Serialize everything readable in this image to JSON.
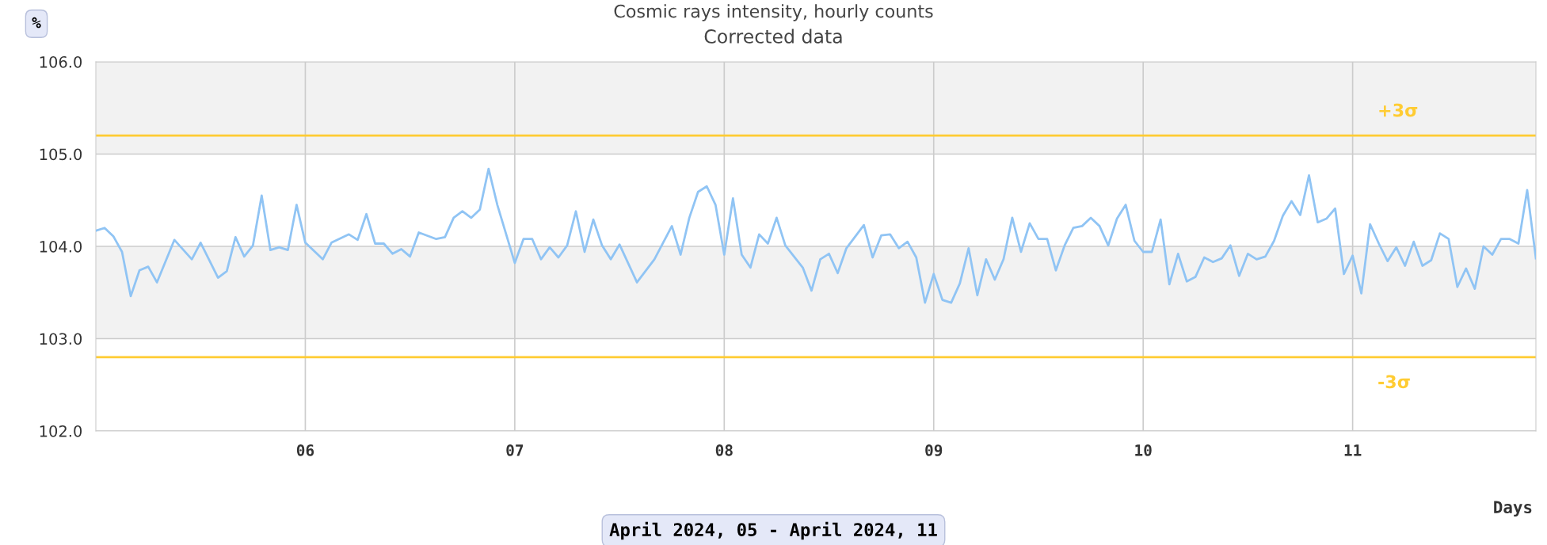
{
  "chart_data": {
    "type": "line",
    "title": "Cosmic rays intensity, hourly counts",
    "subtitle": "Corrected data",
    "ylabel": "%",
    "xlabel": "Days",
    "annotations": [
      "April 2024, 05 - April 2024, 11"
    ],
    "x": [
      "2024-04-05T00:00",
      "2024-04-05T01:00",
      "2024-04-05T02:00",
      "2024-04-05T03:00",
      "2024-04-05T04:00",
      "2024-04-05T05:00",
      "2024-04-05T06:00",
      "2024-04-05T07:00",
      "2024-04-05T09:00",
      "2024-04-05T11:00",
      "2024-04-05T12:00",
      "2024-04-05T14:00",
      "2024-04-05T15:00",
      "2024-04-05T16:00",
      "2024-04-05T17:00",
      "2024-04-05T18:00",
      "2024-04-05T19:00",
      "2024-04-05T20:00",
      "2024-04-05T21:00",
      "2024-04-05T22:00",
      "2024-04-05T23:00",
      "2024-04-06T00:00",
      "2024-04-06T02:00",
      "2024-04-06T03:00",
      "2024-04-06T05:00",
      "2024-04-06T06:00",
      "2024-04-06T07:00",
      "2024-04-06T08:00",
      "2024-04-06T09:00",
      "2024-04-06T10:00",
      "2024-04-06T11:00",
      "2024-04-06T12:00",
      "2024-04-06T13:00",
      "2024-04-06T15:00",
      "2024-04-06T16:00",
      "2024-04-06T17:00",
      "2024-04-06T18:00",
      "2024-04-06T19:00",
      "2024-04-06T20:00",
      "2024-04-06T21:00",
      "2024-04-06T22:00",
      "2024-04-07T00:00",
      "2024-04-07T01:00",
      "2024-04-07T02:00",
      "2024-04-07T03:00",
      "2024-04-07T04:00",
      "2024-04-07T05:00",
      "2024-04-07T06:00",
      "2024-04-07T07:00",
      "2024-04-07T08:00",
      "2024-04-07T09:00",
      "2024-04-07T10:00",
      "2024-04-07T11:00",
      "2024-04-07T12:00",
      "2024-04-07T14:00",
      "2024-04-07T16:00",
      "2024-04-07T18:00",
      "2024-04-07T19:00",
      "2024-04-07T20:00",
      "2024-04-07T21:00",
      "2024-04-07T22:00",
      "2024-04-07T23:00",
      "2024-04-08T00:00",
      "2024-04-08T01:00",
      "2024-04-08T02:00",
      "2024-04-08T03:00",
      "2024-04-08T04:00",
      "2024-04-08T05:00",
      "2024-04-08T06:00",
      "2024-04-08T07:00",
      "2024-04-08T09:00",
      "2024-04-08T10:00",
      "2024-04-08T11:00",
      "2024-04-08T12:00",
      "2024-04-08T13:00",
      "2024-04-08T14:00",
      "2024-04-08T16:00",
      "2024-04-08T17:00",
      "2024-04-08T18:00",
      "2024-04-08T19:00",
      "2024-04-08T20:00",
      "2024-04-08T21:00",
      "2024-04-08T22:00",
      "2024-04-08T23:00",
      "2024-04-09T00:00",
      "2024-04-09T01:00",
      "2024-04-09T02:00",
      "2024-04-09T03:00",
      "2024-04-09T04:00",
      "2024-04-09T05:00",
      "2024-04-09T06:00",
      "2024-04-09T07:00",
      "2024-04-09T08:00",
      "2024-04-09T09:00",
      "2024-04-09T10:00",
      "2024-04-09T11:00",
      "2024-04-09T12:00",
      "2024-04-09T13:00",
      "2024-04-09T14:00",
      "2024-04-09T15:00",
      "2024-04-09T16:00",
      "2024-04-09T17:00",
      "2024-04-09T18:00",
      "2024-04-09T19:00",
      "2024-04-09T20:00",
      "2024-04-09T21:00",
      "2024-04-09T22:00",
      "2024-04-09T23:00",
      "2024-04-10T00:00",
      "2024-04-10T01:00",
      "2024-04-10T02:00",
      "2024-04-10T03:00",
      "2024-04-10T04:00",
      "2024-04-10T05:00",
      "2024-04-10T06:00",
      "2024-04-10T07:00",
      "2024-04-10T08:00",
      "2024-04-10T09:00",
      "2024-04-10T10:00",
      "2024-04-10T11:00",
      "2024-04-10T12:00",
      "2024-04-10T13:00",
      "2024-04-10T14:00",
      "2024-04-10T15:00",
      "2024-04-10T16:00",
      "2024-04-10T17:00",
      "2024-04-10T18:00",
      "2024-04-10T19:00",
      "2024-04-10T20:00",
      "2024-04-10T21:00",
      "2024-04-10T22:00",
      "2024-04-10T23:00",
      "2024-04-11T00:00",
      "2024-04-11T01:00",
      "2024-04-11T02:00",
      "2024-04-11T03:00",
      "2024-04-11T04:00",
      "2024-04-11T05:00",
      "2024-04-11T06:00",
      "2024-04-11T07:00",
      "2024-04-11T08:00",
      "2024-04-11T09:00",
      "2024-04-11T10:00",
      "2024-04-11T11:00",
      "2024-04-11T12:00",
      "2024-04-11T13:00",
      "2024-04-11T14:00",
      "2024-04-11T15:00",
      "2024-04-11T16:00",
      "2024-04-11T17:00",
      "2024-04-11T18:00",
      "2024-04-11T19:00",
      "2024-04-11T20:00",
      "2024-04-11T21:00"
    ],
    "series": [
      {
        "color": "#90c4f4",
        "values": [
          104.17,
          104.2,
          104.11,
          103.94,
          103.46,
          103.74,
          103.78,
          103.61,
          104.07,
          103.86,
          104.04,
          103.66,
          103.73,
          104.1,
          103.89,
          104.01,
          104.55,
          103.96,
          103.99,
          103.96,
          104.45,
          104.04,
          103.86,
          104.04,
          104.13,
          104.07,
          104.35,
          104.03,
          104.03,
          103.92,
          103.97,
          103.89,
          104.15,
          104.08,
          104.1,
          104.31,
          104.38,
          104.31,
          104.4,
          104.84,
          104.45,
          103.82,
          104.08,
          104.08,
          103.86,
          103.99,
          103.88,
          104.01,
          104.38,
          103.94,
          104.29,
          104.01,
          103.86,
          104.02,
          103.61,
          103.86,
          104.22,
          103.91,
          104.31,
          104.59,
          104.65,
          104.45,
          103.91,
          104.52,
          103.91,
          103.77,
          104.13,
          104.03,
          104.31,
          104.01,
          103.77,
          103.52,
          103.86,
          103.92,
          103.71,
          103.98,
          104.23,
          103.88,
          104.12,
          104.13,
          103.98,
          104.05,
          103.88,
          103.39,
          103.7,
          103.42,
          103.39,
          103.6,
          103.98,
          103.47,
          103.86,
          103.64,
          103.86,
          104.31,
          103.94,
          104.25,
          104.08,
          104.08,
          103.74,
          104.01,
          104.2,
          104.22,
          104.31,
          104.22,
          104.01,
          104.3,
          104.45,
          104.06,
          103.94,
          103.94,
          104.29,
          103.59,
          103.92,
          103.62,
          103.67,
          103.88,
          103.83,
          103.87,
          104.01,
          103.68,
          103.92,
          103.86,
          103.89,
          104.06,
          104.33,
          104.49,
          104.34,
          104.77,
          104.26,
          104.3,
          104.41,
          103.7,
          103.9,
          103.49,
          104.24,
          104.03,
          103.84,
          103.99,
          103.79,
          104.05,
          103.79,
          103.85,
          104.14,
          104.08,
          103.56,
          103.76,
          103.54,
          104.0,
          103.91,
          104.08,
          104.08,
          104.03,
          104.61,
          103.87
        ]
      }
    ],
    "xlim": [
      "2024-04-05T00:00",
      "2024-04-11T21:00"
    ],
    "xticks": [
      {
        "value": "2024-04-06",
        "label": "06"
      },
      {
        "value": "2024-04-07",
        "label": "07"
      },
      {
        "value": "2024-04-08",
        "label": "08"
      },
      {
        "value": "2024-04-09",
        "label": "09"
      },
      {
        "value": "2024-04-10",
        "label": "10"
      },
      {
        "value": "2024-04-11",
        "label": "11"
      }
    ],
    "ylim": [
      102,
      106
    ],
    "yticks": [
      {
        "value": 102,
        "label": "102.0"
      },
      {
        "value": 103,
        "label": "103.0"
      },
      {
        "value": 104,
        "label": "104.0"
      },
      {
        "value": 105,
        "label": "105.0"
      },
      {
        "value": 106,
        "label": "106.0"
      }
    ],
    "ref_lines": [
      {
        "axis": "y",
        "value": 105.2,
        "label": "+3σ",
        "color": "#ffcc33"
      },
      {
        "axis": "y",
        "value": 102.8,
        "label": "-3σ",
        "color": "#ffcc33"
      }
    ],
    "bands": [
      {
        "axis": "y",
        "from": 105,
        "to": 106,
        "color": "#f2f2f2"
      },
      {
        "axis": "y",
        "from": 103,
        "to": 104,
        "color": "#f2f2f2"
      }
    ],
    "grid": true,
    "marker": "none",
    "line_style": "solid"
  }
}
